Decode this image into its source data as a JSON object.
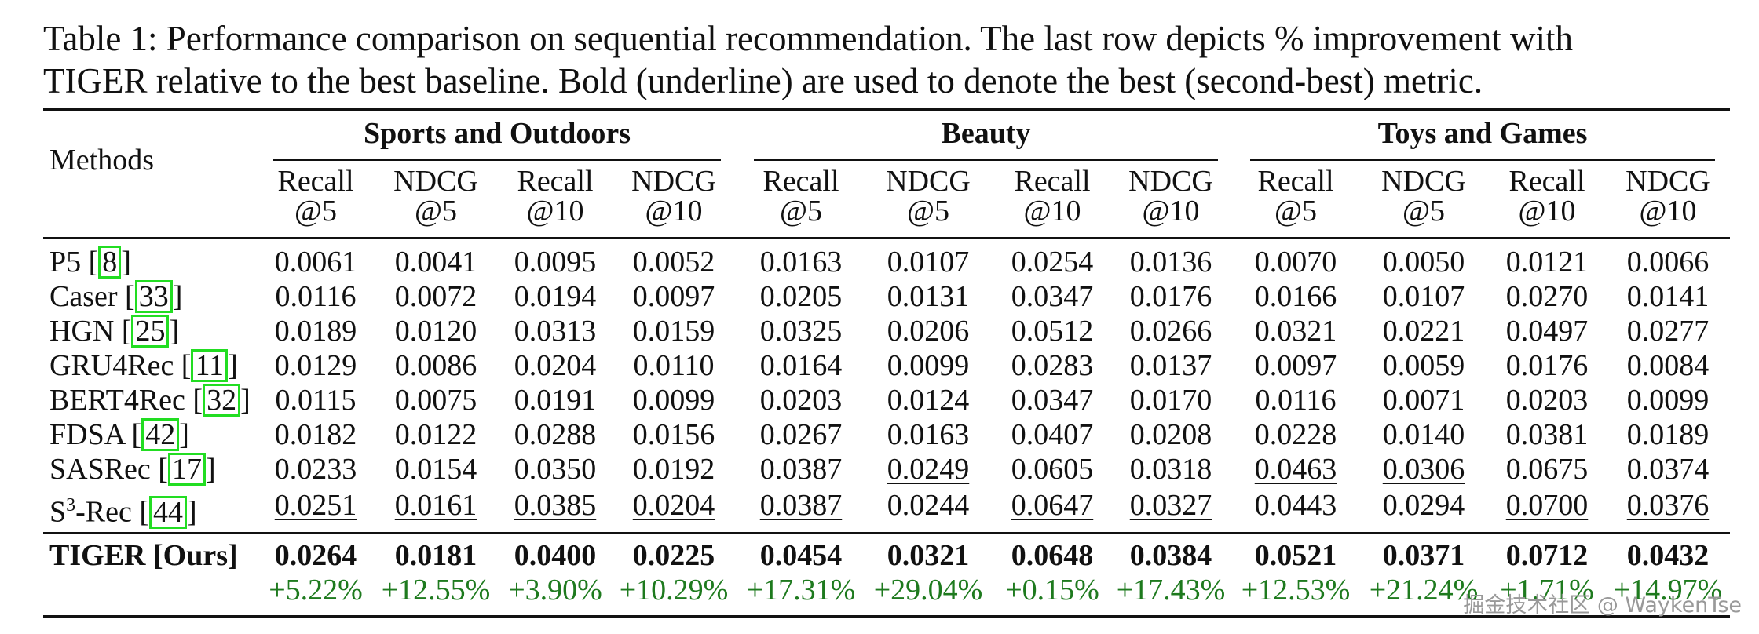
{
  "caption": {
    "label": "Table 1:",
    "text": "Performance comparison on sequential recommendation. The last row depicts % improvement with",
    "text2": "TIGER relative to the best baseline. Bold (underline) are used to denote the best (second-best) metric."
  },
  "table": {
    "methods_header": "Methods",
    "groups": [
      "Sports and Outdoors",
      "Beauty",
      "Toys and Games"
    ],
    "metric_headers": [
      [
        "Recall",
        "@5"
      ],
      [
        "NDCG",
        "@5"
      ],
      [
        "Recall",
        "@10"
      ],
      [
        "NDCG",
        "@10"
      ],
      [
        "Recall",
        "@5"
      ],
      [
        "NDCG",
        "@5"
      ],
      [
        "Recall",
        "@10"
      ],
      [
        "NDCG",
        "@10"
      ],
      [
        "Recall",
        "@5"
      ],
      [
        "NDCG",
        "@5"
      ],
      [
        "Recall",
        "@10"
      ],
      [
        "NDCG",
        "@10"
      ]
    ],
    "rows": [
      {
        "method": "P5 [",
        "cite": "8",
        "close": "]",
        "values": [
          "0.0061",
          "0.0041",
          "0.0095",
          "0.0052",
          "0.0163",
          "0.0107",
          "0.0254",
          "0.0136",
          "0.0070",
          "0.0050",
          "0.0121",
          "0.0066"
        ],
        "underline": []
      },
      {
        "method": "Caser [",
        "cite": "33",
        "close": "]",
        "values": [
          "0.0116",
          "0.0072",
          "0.0194",
          "0.0097",
          "0.0205",
          "0.0131",
          "0.0347",
          "0.0176",
          "0.0166",
          "0.0107",
          "0.0270",
          "0.0141"
        ],
        "underline": []
      },
      {
        "method": "HGN [",
        "cite": "25",
        "close": "]",
        "values": [
          "0.0189",
          "0.0120",
          "0.0313",
          "0.0159",
          "0.0325",
          "0.0206",
          "0.0512",
          "0.0266",
          "0.0321",
          "0.0221",
          "0.0497",
          "0.0277"
        ],
        "underline": []
      },
      {
        "method": "GRU4Rec [",
        "cite": "11",
        "close": "]",
        "values": [
          "0.0129",
          "0.0086",
          "0.0204",
          "0.0110",
          "0.0164",
          "0.0099",
          "0.0283",
          "0.0137",
          "0.0097",
          "0.0059",
          "0.0176",
          "0.0084"
        ],
        "underline": []
      },
      {
        "method": "BERT4Rec [",
        "cite": "32",
        "close": "]",
        "values": [
          "0.0115",
          "0.0075",
          "0.0191",
          "0.0099",
          "0.0203",
          "0.0124",
          "0.0347",
          "0.0170",
          "0.0116",
          "0.0071",
          "0.0203",
          "0.0099"
        ],
        "underline": []
      },
      {
        "method": "FDSA [",
        "cite": "42",
        "close": "]",
        "values": [
          "0.0182",
          "0.0122",
          "0.0288",
          "0.0156",
          "0.0267",
          "0.0163",
          "0.0407",
          "0.0208",
          "0.0228",
          "0.0140",
          "0.0381",
          "0.0189"
        ],
        "underline": []
      },
      {
        "method": "SASRec [",
        "cite": "17",
        "close": "]",
        "values": [
          "0.0233",
          "0.0154",
          "0.0350",
          "0.0192",
          "0.0387",
          "0.0249",
          "0.0605",
          "0.0318",
          "0.0463",
          "0.0306",
          "0.0675",
          "0.0374"
        ],
        "underline": [
          5,
          8,
          9
        ]
      },
      {
        "method": "S",
        "sup": "3",
        "method_rest": "-Rec [",
        "cite": "44",
        "close": "]",
        "values": [
          "0.0251",
          "0.0161",
          "0.0385",
          "0.0204",
          "0.0387",
          "0.0244",
          "0.0647",
          "0.0327",
          "0.0443",
          "0.0294",
          "0.0700",
          "0.0376"
        ],
        "underline": [
          0,
          1,
          2,
          3,
          4,
          6,
          7,
          10,
          11
        ]
      }
    ],
    "tiger": {
      "method": "TIGER [Ours]",
      "values": [
        "0.0264",
        "0.0181",
        "0.0400",
        "0.0225",
        "0.0454",
        "0.0321",
        "0.0648",
        "0.0384",
        "0.0521",
        "0.0371",
        "0.0712",
        "0.0432"
      ],
      "improvements": [
        "+5.22%",
        "+12.55%",
        "+3.90%",
        "+10.29%",
        "+17.31%",
        "+29.04%",
        "+0.15%",
        "+17.43%",
        "+12.53%",
        "+21.24%",
        "+1.71%",
        "+14.97%"
      ]
    }
  },
  "watermark": "掘金技术社区 @ WaykenTse"
}
